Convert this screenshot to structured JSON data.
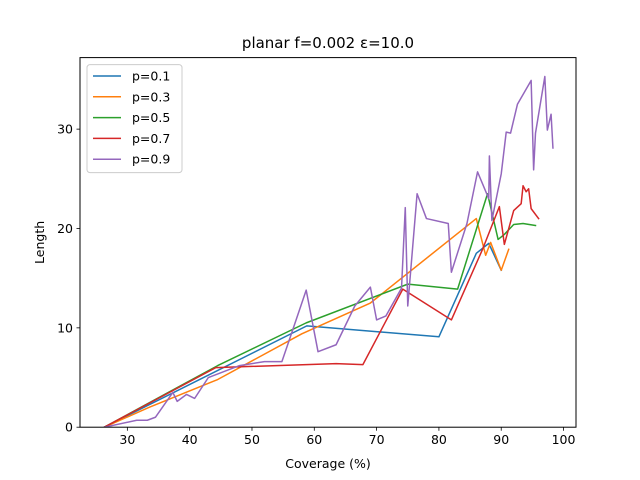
{
  "chart_data": {
    "type": "line",
    "title": "planar f=0.002 ε=10.0",
    "xlabel": "Coverage (%)",
    "ylabel": "Length",
    "xlim": [
      22.4,
      102.0
    ],
    "ylim": [
      0,
      37.2
    ],
    "xticks": [
      30,
      40,
      50,
      60,
      70,
      80,
      90,
      100
    ],
    "yticks": [
      0,
      10,
      20,
      30
    ],
    "grid": false,
    "legend_position": "upper-left",
    "series": [
      {
        "name": "p=0.1",
        "color": "#1f77b4",
        "points": [
          [
            26.3,
            0.0
          ],
          [
            58.8,
            10.2
          ],
          [
            80.0,
            9.1
          ],
          [
            86.0,
            17.5
          ],
          [
            88.0,
            18.5
          ],
          [
            90.0,
            15.8
          ]
        ]
      },
      {
        "name": "p=0.3",
        "color": "#ff7f0e",
        "points": [
          [
            26.3,
            0.0
          ],
          [
            33.5,
            2.0
          ],
          [
            44.5,
            4.8
          ],
          [
            58.0,
            9.4
          ],
          [
            69.0,
            12.5
          ],
          [
            86.0,
            21.0
          ],
          [
            87.5,
            17.3
          ],
          [
            88.3,
            18.6
          ],
          [
            90.0,
            15.8
          ],
          [
            91.2,
            17.9
          ]
        ]
      },
      {
        "name": "p=0.5",
        "color": "#2ca02c",
        "points": [
          [
            26.3,
            0.0
          ],
          [
            44.5,
            6.2
          ],
          [
            58.7,
            10.5
          ],
          [
            75.0,
            14.4
          ],
          [
            83.0,
            13.9
          ],
          [
            87.8,
            23.5
          ],
          [
            89.5,
            18.9
          ],
          [
            90.5,
            19.4
          ],
          [
            92.0,
            20.4
          ],
          [
            93.5,
            20.5
          ],
          [
            95.5,
            20.3
          ]
        ]
      },
      {
        "name": "p=0.7",
        "color": "#d62728",
        "points": [
          [
            26.3,
            0.0
          ],
          [
            44.2,
            6.0
          ],
          [
            63.5,
            6.4
          ],
          [
            67.8,
            6.3
          ],
          [
            74.2,
            13.9
          ],
          [
            82.0,
            10.8
          ],
          [
            87.0,
            17.9
          ],
          [
            89.7,
            22.2
          ],
          [
            90.5,
            18.4
          ],
          [
            92.0,
            21.8
          ],
          [
            93.2,
            22.5
          ],
          [
            93.5,
            24.3
          ],
          [
            94.0,
            23.7
          ],
          [
            94.4,
            24.0
          ],
          [
            94.8,
            22.0
          ],
          [
            96.0,
            21.0
          ]
        ]
      },
      {
        "name": "p=0.9",
        "color": "#9467bd",
        "points": [
          [
            26.3,
            0.0
          ],
          [
            31.5,
            0.7
          ],
          [
            33.2,
            0.7
          ],
          [
            34.5,
            1.0
          ],
          [
            37.3,
            3.5
          ],
          [
            38.0,
            2.6
          ],
          [
            39.5,
            3.3
          ],
          [
            40.8,
            2.9
          ],
          [
            43.0,
            5.0
          ],
          [
            48.0,
            6.2
          ],
          [
            52.0,
            6.6
          ],
          [
            54.8,
            6.6
          ],
          [
            56.0,
            8.8
          ],
          [
            58.7,
            13.8
          ],
          [
            60.6,
            7.6
          ],
          [
            63.5,
            8.3
          ],
          [
            66.5,
            12.2
          ],
          [
            69.0,
            14.1
          ],
          [
            70.0,
            10.8
          ],
          [
            71.5,
            11.2
          ],
          [
            74.0,
            14.0
          ],
          [
            74.6,
            22.1
          ],
          [
            75.0,
            12.2
          ],
          [
            76.5,
            23.5
          ],
          [
            78.0,
            21.0
          ],
          [
            81.5,
            20.5
          ],
          [
            82.0,
            15.6
          ],
          [
            84.5,
            20.5
          ],
          [
            86.2,
            25.7
          ],
          [
            88.0,
            23.0
          ],
          [
            88.1,
            27.3
          ],
          [
            88.5,
            20.8
          ],
          [
            90.0,
            25.5
          ],
          [
            90.8,
            29.7
          ],
          [
            91.5,
            29.6
          ],
          [
            92.6,
            32.5
          ],
          [
            94.8,
            34.9
          ],
          [
            95.2,
            25.9
          ],
          [
            95.5,
            29.6
          ],
          [
            97.0,
            35.3
          ],
          [
            97.4,
            29.9
          ],
          [
            98.0,
            31.5
          ],
          [
            98.3,
            28.1
          ]
        ]
      }
    ]
  }
}
